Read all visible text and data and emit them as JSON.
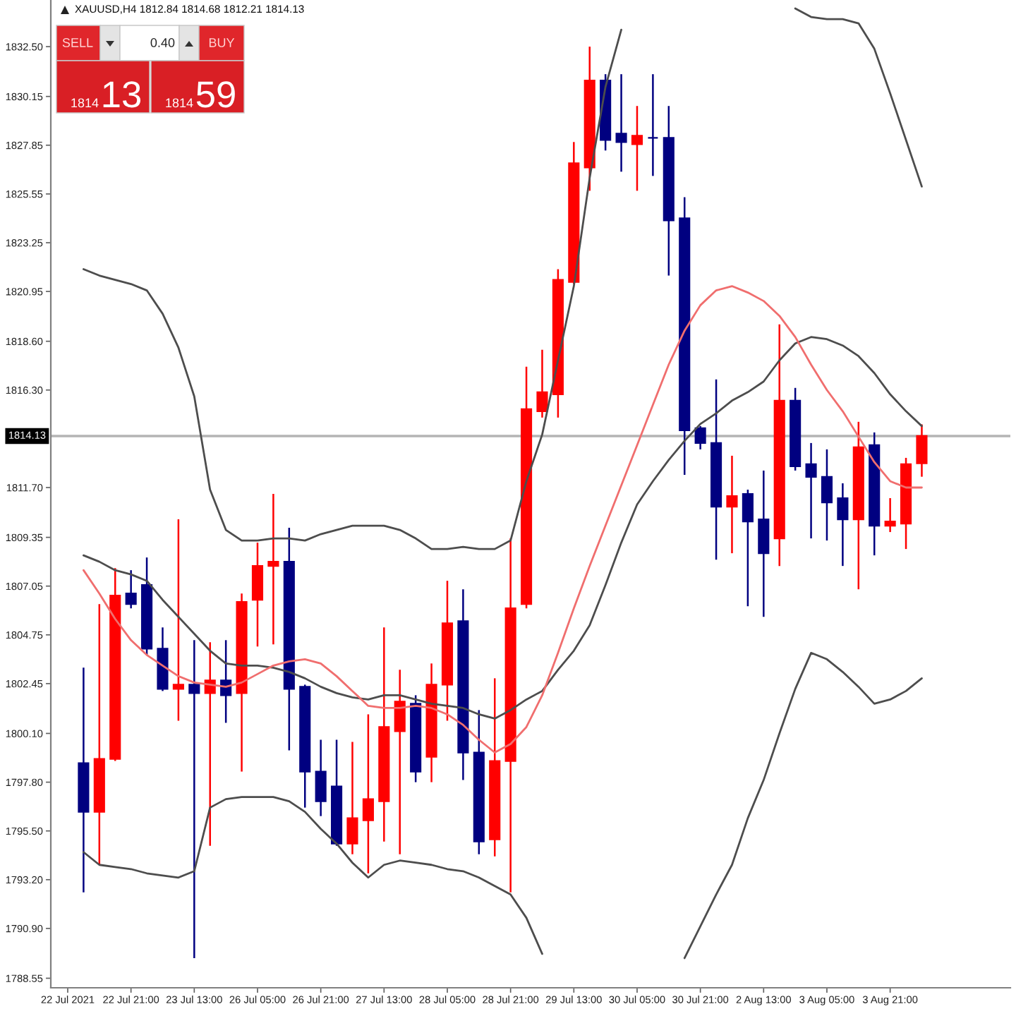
{
  "chart_data": {
    "type": "candlestick",
    "title": "XAUUSD,H4 1812.84 1814.68 1812.21 1814.13",
    "categories": [
      "22 Jul 2021",
      null,
      null,
      null,
      "22 Jul 21:00",
      null,
      null,
      null,
      "23 Jul 13:00",
      null,
      null,
      null,
      "26 Jul 05:00",
      null,
      null,
      null,
      "26 Jul 21:00",
      null,
      null,
      null,
      "27 Jul 13:00",
      null,
      null,
      null,
      "28 Jul 05:00",
      null,
      null,
      null,
      "28 Jul 21:00",
      null,
      null,
      null,
      "29 Jul 13:00",
      null,
      null,
      null,
      "30 Jul 05:00",
      null,
      null,
      null,
      "30 Jul 21:00",
      null,
      null,
      null,
      "2 Aug 13:00",
      null,
      null,
      null,
      "3 Aug 05:00",
      null,
      null,
      null,
      "3 Aug 21:00",
      null,
      null
    ],
    "ohlc": [
      null,
      [
        1798.7,
        1803.2,
        1792.6,
        1796.4
      ],
      [
        1796.4,
        1806.2,
        1793.9,
        1798.9
      ],
      [
        1798.9,
        1807.9,
        1798.8,
        1806.6
      ],
      [
        1806.7,
        1807.8,
        1806.0,
        1806.2
      ],
      [
        1807.1,
        1808.4,
        1803.8,
        1804.1
      ],
      [
        1804.1,
        1805.1,
        1802.1,
        1802.2
      ],
      [
        1802.2,
        1810.2,
        1800.7,
        1802.4
      ],
      [
        1802.4,
        1804.5,
        1789.5,
        1802.0
      ],
      [
        1802.0,
        1804.4,
        1794.8,
        1802.6
      ],
      [
        1802.6,
        1804.5,
        1800.6,
        1801.9
      ],
      [
        1802.0,
        1806.7,
        1798.3,
        1806.3
      ],
      [
        1806.4,
        1809.1,
        1804.2,
        1808.0
      ],
      [
        1808.0,
        1811.4,
        1804.3,
        1808.2
      ],
      [
        1808.2,
        1809.8,
        1799.3,
        1802.2
      ],
      [
        1802.3,
        1802.4,
        1796.6,
        1798.3
      ],
      [
        1798.3,
        1799.8,
        1796.2,
        1796.9
      ],
      [
        1797.6,
        1799.8,
        1794.8,
        1794.9
      ],
      [
        1794.9,
        1799.7,
        1794.4,
        1796.1
      ],
      [
        1796.0,
        1801.0,
        1793.5,
        1797.0
      ],
      [
        1796.9,
        1805.1,
        1795.0,
        1800.4
      ],
      [
        1800.2,
        1803.1,
        1794.4,
        1801.6
      ],
      [
        1801.5,
        1801.9,
        1797.8,
        1798.3
      ],
      [
        1799.0,
        1803.4,
        1797.8,
        1802.4
      ],
      [
        1802.4,
        1807.3,
        1800.7,
        1805.3
      ],
      [
        1805.4,
        1806.9,
        1797.9,
        1799.2
      ],
      [
        1799.2,
        1801.2,
        1794.4,
        1795.0
      ],
      [
        1795.1,
        1802.7,
        1794.3,
        1798.8
      ],
      [
        1798.8,
        1809.3,
        1792.6,
        1806.0
      ],
      [
        1806.2,
        1817.4,
        1806.0,
        1815.4
      ],
      [
        1815.3,
        1818.2,
        1815.0,
        1816.2
      ],
      [
        1816.1,
        1822.0,
        1815.0,
        1821.5
      ],
      [
        1821.4,
        1828.0,
        1821.3,
        1827.0
      ],
      [
        1826.8,
        1832.5,
        1825.7,
        1830.9
      ],
      [
        1830.9,
        1831.2,
        1827.6,
        1828.1
      ],
      [
        1828.4,
        1831.2,
        1826.6,
        1828.0
      ],
      [
        1827.9,
        1829.7,
        1825.7,
        1828.3
      ],
      [
        1828.2,
        1831.2,
        1826.4,
        1828.2
      ],
      [
        1828.2,
        1829.7,
        1821.7,
        1824.3
      ],
      [
        1824.4,
        1825.4,
        1812.3,
        1814.4
      ],
      [
        1814.5,
        1814.6,
        1813.5,
        1813.8
      ],
      [
        1813.8,
        1816.8,
        1808.3,
        1810.8
      ],
      [
        1810.8,
        1813.2,
        1808.6,
        1811.3
      ],
      [
        1811.4,
        1811.6,
        1806.1,
        1810.1
      ],
      [
        1810.2,
        1812.5,
        1805.6,
        1808.6
      ],
      [
        1809.3,
        1819.4,
        1808.0,
        1815.8
      ],
      [
        1815.8,
        1816.4,
        1812.5,
        1812.7
      ],
      [
        1812.8,
        1813.8,
        1809.3,
        1812.2
      ],
      [
        1812.2,
        1813.5,
        1809.2,
        1811.0
      ],
      [
        1811.2,
        1811.9,
        1808.0,
        1810.2
      ],
      [
        1810.2,
        1814.8,
        1806.9,
        1813.6
      ],
      [
        1813.7,
        1814.3,
        1808.5,
        1809.9
      ],
      [
        1809.9,
        1811.2,
        1809.6,
        1810.1
      ],
      [
        1810.0,
        1813.1,
        1808.8,
        1812.8
      ],
      [
        1812.84,
        1814.68,
        1812.21,
        1814.13
      ]
    ],
    "colors": [
      null,
      "#000080",
      "#ff0000",
      "#ff0000",
      "#000080",
      "#000080",
      "#000080",
      "#ff0000",
      "#000080",
      "#ff0000",
      "#000080",
      "#ff0000",
      "#ff0000",
      "#ff0000",
      "#000080",
      "#000080",
      "#000080",
      "#000080",
      "#ff0000",
      "#ff0000",
      "#ff0000",
      "#ff0000",
      "#000080",
      "#ff0000",
      "#ff0000",
      "#000080",
      "#000080",
      "#ff0000",
      "#ff0000",
      "#ff0000",
      "#ff0000",
      "#ff0000",
      "#ff0000",
      "#ff0000",
      "#000080",
      "#000080",
      "#ff0000",
      "#000080",
      "#000080",
      "#000080",
      "#000080",
      "#000080",
      "#ff0000",
      "#000080",
      "#000080",
      "#ff0000",
      "#000080",
      "#000080",
      "#000080",
      "#000080",
      "#ff0000",
      "#000080",
      "#ff0000",
      "#ff0000",
      "#ff0000"
    ],
    "series": [
      {
        "type": "line",
        "color": "#4d4d4d",
        "values": [
          null,
          1822.0,
          1821.7,
          1821.5,
          1821.3,
          1821.0,
          1819.9,
          1818.3,
          1816.0,
          1811.6,
          1809.7,
          1809.2,
          1809.2,
          1809.3,
          1809.3,
          1809.2,
          1809.5,
          1809.7,
          1809.9,
          1809.9,
          1809.9,
          1809.7,
          1809.3,
          1808.8,
          1808.8,
          1808.9,
          1808.8,
          1808.8,
          1809.2,
          1812.0,
          1814.2,
          1817.7,
          1821.2,
          1826.3,
          1830.6,
          1833.3,
          null,
          null,
          null,
          null,
          null,
          null,
          null,
          null,
          null,
          null,
          1834.3,
          1833.9,
          1833.8,
          1833.8,
          1833.6,
          1832.4,
          1830.3,
          1828.1,
          1825.9
        ]
      },
      {
        "type": "line",
        "color": "#4d4d4d",
        "values": [
          null,
          1808.5,
          1808.2,
          1807.8,
          1807.6,
          1807.3,
          1806.4,
          1805.6,
          1804.8,
          1804.0,
          1803.4,
          1803.3,
          1803.3,
          1803.2,
          1803.0,
          1802.7,
          1802.3,
          1802.0,
          1801.8,
          1801.7,
          1801.9,
          1801.9,
          1801.7,
          1801.5,
          1801.4,
          1801.3,
          1801.0,
          1800.8,
          1801.2,
          1801.7,
          1802.1,
          1803.1,
          1804.0,
          1805.2,
          1807.1,
          1809.1,
          1810.9,
          1812.0,
          1813.0,
          1813.9,
          1814.7,
          1815.2,
          1815.8,
          1816.2,
          1816.7,
          1817.7,
          1818.5,
          1818.8,
          1818.7,
          1818.4,
          1817.9,
          1817.1,
          1816.1,
          1815.3,
          1814.6
        ]
      },
      {
        "type": "line",
        "color": "#4d4d4d",
        "values": [
          null,
          1794.5,
          1793.9,
          1793.8,
          1793.7,
          1793.5,
          1793.4,
          1793.3,
          1793.6,
          1796.6,
          1797.0,
          1797.1,
          1797.1,
          1797.1,
          1796.9,
          1796.4,
          1795.6,
          1794.9,
          1794.0,
          1793.3,
          1793.9,
          1794.1,
          1794.0,
          1793.9,
          1793.7,
          1793.6,
          1793.3,
          1792.9,
          1792.5,
          1791.4,
          1789.7,
          null,
          null,
          null,
          null,
          null,
          null,
          null,
          null,
          1789.5,
          1791.0,
          1792.5,
          1793.9,
          1796.1,
          1797.9,
          1800.1,
          1802.2,
          1803.9,
          1803.6,
          1803.0,
          1802.3,
          1801.5,
          1801.7,
          1802.1,
          1802.7
        ]
      },
      {
        "type": "line",
        "color": "#f06e6e",
        "values": [
          null,
          1807.8,
          1806.7,
          1805.5,
          1804.5,
          1803.8,
          1803.3,
          1802.8,
          1802.5,
          1802.4,
          1802.3,
          1802.5,
          1802.9,
          1803.3,
          1803.5,
          1803.6,
          1803.4,
          1802.8,
          1802.1,
          1801.4,
          1801.3,
          1801.3,
          1801.4,
          1801.3,
          1801.0,
          1800.5,
          1799.8,
          1799.2,
          1799.6,
          1800.4,
          1801.9,
          1803.9,
          1806.0,
          1808.0,
          1809.9,
          1811.8,
          1813.7,
          1815.6,
          1817.5,
          1819.1,
          1820.3,
          1821.0,
          1821.2,
          1820.9,
          1820.5,
          1819.8,
          1818.8,
          1817.5,
          1816.3,
          1815.3,
          1814.1,
          1812.9,
          1812.0,
          1811.7,
          1811.7
        ]
      }
    ],
    "ylim": [
      1788.1,
      1834.7
    ],
    "yticks": [
      {
        "value": 1832.5,
        "label": "1832.50"
      },
      {
        "value": 1830.15,
        "label": "1830.15"
      },
      {
        "value": 1827.85,
        "label": "1827.85"
      },
      {
        "value": 1825.55,
        "label": "1825.55"
      },
      {
        "value": 1823.25,
        "label": "1823.25"
      },
      {
        "value": 1820.95,
        "label": "1820.95"
      },
      {
        "value": 1818.6,
        "label": "1818.60"
      },
      {
        "value": 1816.3,
        "label": "1816.30"
      },
      {
        "value": 1811.7,
        "label": "1811.70"
      },
      {
        "value": 1809.35,
        "label": "1809.35"
      },
      {
        "value": 1807.05,
        "label": "1807.05"
      },
      {
        "value": 1804.75,
        "label": "1804.75"
      },
      {
        "value": 1802.45,
        "label": "1802.45"
      },
      {
        "value": 1800.1,
        "label": "1800.10"
      },
      {
        "value": 1797.8,
        "label": "1797.80"
      },
      {
        "value": 1795.5,
        "label": "1795.50"
      },
      {
        "value": 1793.2,
        "label": "1793.20"
      },
      {
        "value": 1790.9,
        "label": "1790.90"
      },
      {
        "value": 1788.55,
        "label": "1788.55"
      }
    ],
    "ref_lines": [
      {
        "axis": "y",
        "value": 1814.13,
        "label": "1814.13",
        "color": "#b4b4b4"
      }
    ],
    "annotations": [
      "SELL",
      "0.40",
      "BUY",
      "1814",
      "13",
      "1814",
      "59"
    ]
  }
}
